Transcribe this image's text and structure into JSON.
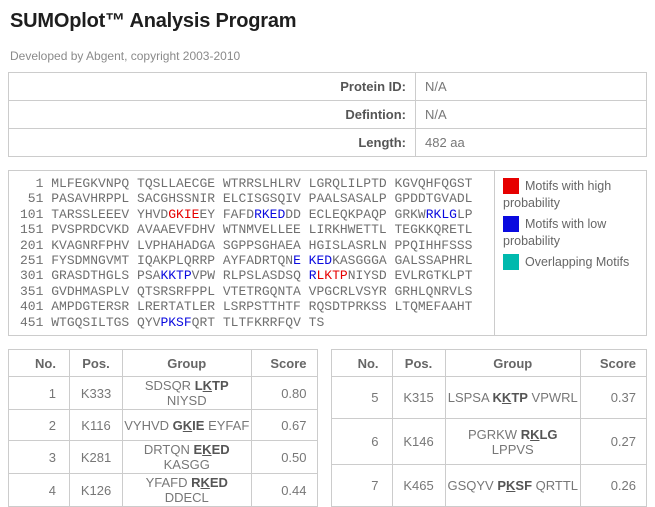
{
  "colors": {
    "motif_high": "#e60000",
    "motif_low": "#0a0adf",
    "overlap": "#00b9ad",
    "score_high": "#e60000"
  },
  "header": {
    "title": "SUMOplot™ Analysis Program",
    "subtitle": "Developed by Abgent, copyright 2003-2010"
  },
  "info": {
    "rows": [
      {
        "label": "Protein ID:",
        "value": "N/A"
      },
      {
        "label": "Defintion:",
        "value": "N/A"
      },
      {
        "label": "Length:",
        "value": "482 aa"
      }
    ]
  },
  "sequence": {
    "lines": [
      {
        "num": "1",
        "segments": [
          [
            "g",
            "MLFEGKVNPQ TQSLLAECGE WTRRSLHLRV LGRQLILPTD KGVQHFQGST"
          ]
        ]
      },
      {
        "num": "51",
        "segments": [
          [
            "g",
            "PASAVHRPPL SACGHSSNIR ELCISGSQIV PAALSASALP GPDDTGVADL"
          ]
        ]
      },
      {
        "num": "101",
        "segments": [
          [
            "g",
            "TARSSLEEEV YHVD"
          ],
          [
            "r",
            "GKIE"
          ],
          [
            "g",
            "EY FAFD"
          ],
          [
            "b",
            "RKED"
          ],
          [
            "g",
            "DD ECLEQKPAQP GRKW"
          ],
          [
            "b",
            "RKLG"
          ],
          [
            "g",
            "LP"
          ]
        ]
      },
      {
        "num": "151",
        "segments": [
          [
            "g",
            "PVSPRDCVKD AVAAEVFDHV WTNMVELLEE LIRKHWETTL TEGKKQRETL"
          ]
        ]
      },
      {
        "num": "201",
        "segments": [
          [
            "g",
            "KVAGNRFPHV LVPHAHADGA SGPPSGHAEA HGISLASRLN PPQIHHFSSS"
          ]
        ]
      },
      {
        "num": "251",
        "segments": [
          [
            "g",
            "FYSDMNGVMT IQAKPLQRRP AYFADRTQN"
          ],
          [
            "b",
            "E KED"
          ],
          [
            "g",
            "KASGGGA GALSSAPHRL"
          ]
        ]
      },
      {
        "num": "301",
        "segments": [
          [
            "g",
            "GRASDTHGLS PSA"
          ],
          [
            "b",
            "KKTP"
          ],
          [
            "g",
            "VPW RLPSLASDSQ "
          ],
          [
            "b",
            "R"
          ],
          [
            "r",
            "LKTP"
          ],
          [
            "g",
            "NIYSD EVLRGTKLPT"
          ]
        ]
      },
      {
        "num": "351",
        "segments": [
          [
            "g",
            "GVDHMASPLV QTSRSRFPPL VTETRGQNTA VPGCRLVSYR GRHLQNRVLS"
          ]
        ]
      },
      {
        "num": "401",
        "segments": [
          [
            "g",
            "AMPDGTERSR LRERTATLER LSRPSTTHTF RQSDTPRKSS LTQMEFAAHT"
          ]
        ]
      },
      {
        "num": "451",
        "segments": [
          [
            "g",
            "WTGQSILTGS QYV"
          ],
          [
            "b",
            "PKSF"
          ],
          [
            "g",
            "QRT TLTFKRRFQV TS"
          ]
        ]
      }
    ]
  },
  "legend": {
    "items": [
      {
        "color": "#e60000",
        "label": "Motifs with high probability"
      },
      {
        "color": "#0a0adf",
        "label": "Motifs with low probability"
      },
      {
        "color": "#00b9ad",
        "label": "Overlapping Motifs"
      }
    ]
  },
  "results": {
    "headers": [
      "No.",
      "Pos.",
      "Group",
      "Score"
    ],
    "left": [
      {
        "no": "1",
        "pos": "K333",
        "group": {
          "pre": "SDSQR ",
          "core_pre": "L",
          "core_k": "K",
          "core_post": "TP",
          "post": " NIYSD"
        },
        "score": "0.80",
        "high": true
      },
      {
        "no": "2",
        "pos": "K116",
        "group": {
          "pre": "VYHVD ",
          "core_pre": "G",
          "core_k": "K",
          "core_post": "IE",
          "post": " EYFAF"
        },
        "score": "0.67",
        "high": true
      },
      {
        "no": "3",
        "pos": "K281",
        "group": {
          "pre": "DRTQN ",
          "core_pre": "E",
          "core_k": "K",
          "core_post": "ED",
          "post": " KASGG"
        },
        "score": "0.50",
        "high": false
      },
      {
        "no": "4",
        "pos": "K126",
        "group": {
          "pre": "YFAFD ",
          "core_pre": "R",
          "core_k": "K",
          "core_post": "ED",
          "post": " DDECL"
        },
        "score": "0.44",
        "high": false
      }
    ],
    "right": [
      {
        "no": "5",
        "pos": "K315",
        "group": {
          "pre": "LSPSA ",
          "core_pre": "K",
          "core_k": "K",
          "core_post": "TP",
          "post": " VPWRL"
        },
        "score": "0.37",
        "high": false
      },
      {
        "no": "6",
        "pos": "K146",
        "group": {
          "pre": "PGRKW ",
          "core_pre": "R",
          "core_k": "K",
          "core_post": "LG",
          "post": " LPPVS"
        },
        "score": "0.27",
        "high": false
      },
      {
        "no": "7",
        "pos": "K465",
        "group": {
          "pre": "GSQYV ",
          "core_pre": "P",
          "core_k": "K",
          "core_post": "SF",
          "post": " QRTTL"
        },
        "score": "0.26",
        "high": false
      }
    ]
  }
}
